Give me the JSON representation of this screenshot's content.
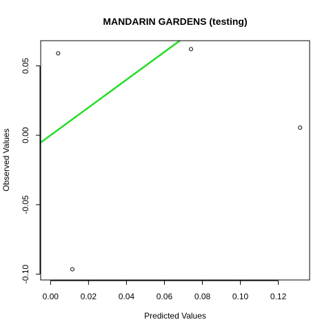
{
  "chart_data": {
    "type": "scatter",
    "title": "MANDARIN GARDENS (testing)",
    "xlabel": "Predicted Values",
    "ylabel": "Observed Values",
    "xlim": [
      -0.0052,
      0.1365
    ],
    "ylim": [
      -0.1042,
      0.0681
    ],
    "x_ticks": [
      0.0,
      0.02,
      0.04,
      0.06,
      0.08,
      0.1,
      0.12
    ],
    "x_tick_labels": [
      "0.00",
      "0.02",
      "0.04",
      "0.06",
      "0.08",
      "0.10",
      "0.12"
    ],
    "y_ticks": [
      -0.1,
      -0.05,
      0.0,
      0.05
    ],
    "y_tick_labels": [
      "-0.10",
      "-0.05",
      "0.00",
      "0.05"
    ],
    "points": [
      {
        "x": 0.004,
        "y": 0.059
      },
      {
        "x": 0.074,
        "y": 0.062
      },
      {
        "x": 0.0115,
        "y": -0.0965
      },
      {
        "x": 0.1315,
        "y": 0.0055
      }
    ],
    "reference_line": {
      "slope": 1,
      "intercept": 0,
      "color": "#22dd22"
    },
    "grid": false
  }
}
